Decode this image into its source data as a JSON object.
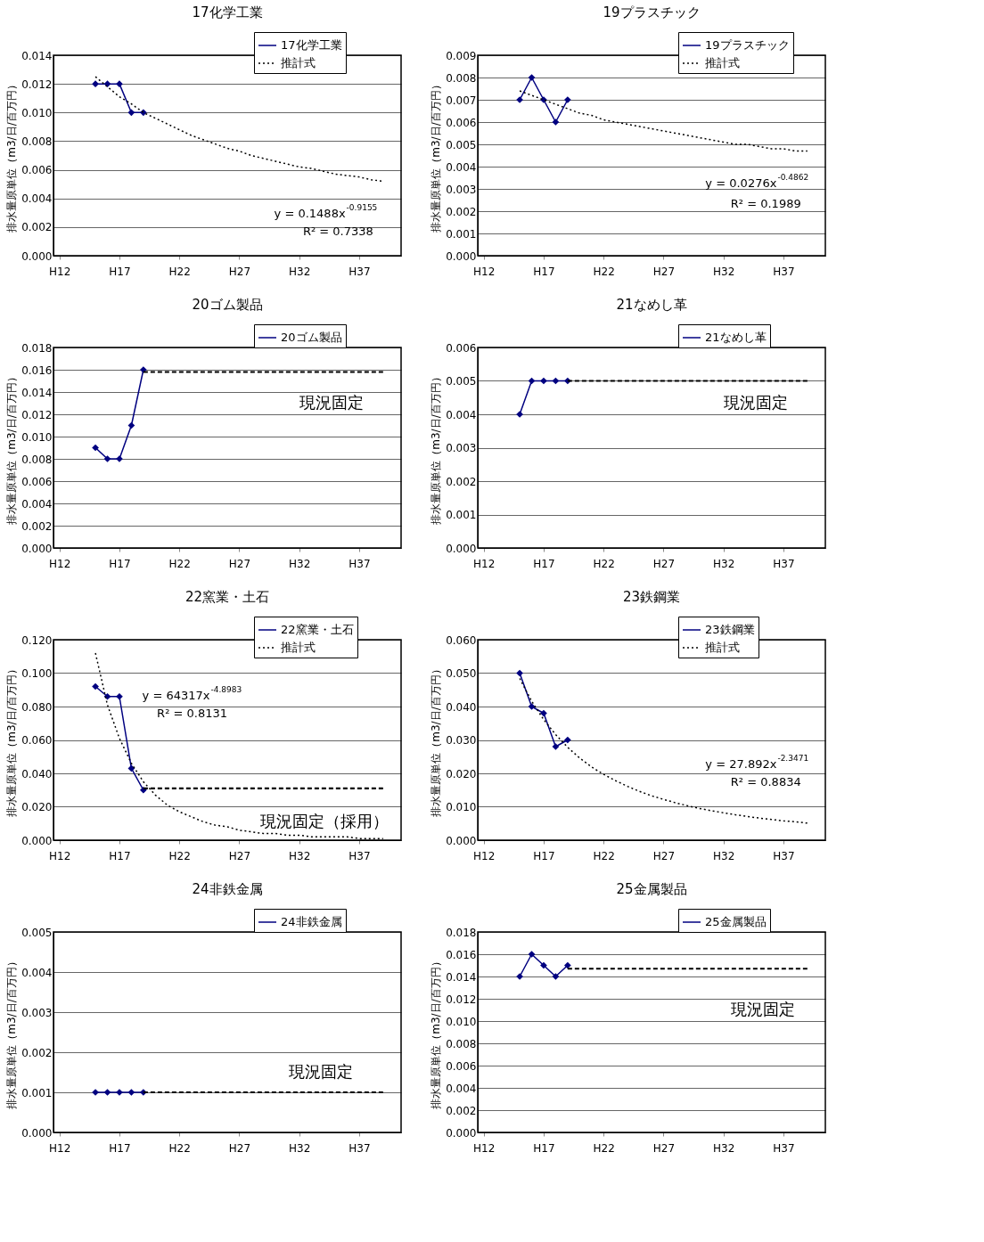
{
  "chart_data": [
    {
      "type": "line",
      "title": "17化学工業",
      "ylabel": "排水量原単位（m3/日/百万円）",
      "categories": [
        "H12",
        null,
        null,
        null,
        null,
        "H17",
        null,
        null,
        null,
        null,
        "H22",
        null,
        null,
        null,
        null,
        "H27",
        null,
        null,
        null,
        null,
        "H32",
        null,
        null,
        null,
        null,
        "H37",
        null,
        null,
        null
      ],
      "ylim": [
        0,
        0.014
      ],
      "yticks": [
        {
          "value": 0,
          "label": "0.000"
        },
        {
          "value": 0.002,
          "label": "0.002"
        },
        {
          "value": 0.004,
          "label": "0.004"
        },
        {
          "value": 0.006,
          "label": "0.006"
        },
        {
          "value": 0.008,
          "label": "0.008"
        },
        {
          "value": 0.01,
          "label": "0.010"
        },
        {
          "value": 0.012,
          "label": "0.012"
        },
        {
          "value": 0.014,
          "label": "0.014"
        }
      ],
      "grid": "y",
      "legend": "top right",
      "series": [
        {
          "name": "17化学工業",
          "color": "#000080",
          "marker": "diamond",
          "line_style": "solid",
          "values": [
            null,
            null,
            null,
            0.012,
            0.012,
            0.012,
            0.01,
            0.01,
            null,
            null,
            null,
            null,
            null,
            null,
            null,
            null,
            null,
            null,
            null,
            null,
            null,
            null,
            null,
            null,
            null,
            null,
            null,
            null,
            null
          ]
        },
        {
          "name": "推計式",
          "color": "#000000",
          "marker": "none",
          "line_style": "dotted",
          "values": [
            null,
            null,
            null,
            0.0125,
            0.0118,
            0.0111,
            0.0106,
            0.01,
            0.0096,
            0.0092,
            0.0088,
            0.0084,
            0.0081,
            0.0078,
            0.0075,
            0.0073,
            0.007,
            0.0068,
            0.0066,
            0.0064,
            0.0062,
            0.0061,
            0.0059,
            0.0057,
            0.0056,
            0.0055,
            0.0053,
            0.0052,
            null
          ]
        }
      ],
      "annotations": [
        "y = 0.1488x$^{-0.9155}$",
        "R² = 0.7338"
      ]
    },
    {
      "type": "line",
      "title": "19プラスチック",
      "ylabel": "排水量原単位（m3/日/百万円）",
      "categories": [
        "H12",
        null,
        null,
        null,
        null,
        "H17",
        null,
        null,
        null,
        null,
        "H22",
        null,
        null,
        null,
        null,
        "H27",
        null,
        null,
        null,
        null,
        "H32",
        null,
        null,
        null,
        null,
        "H37",
        null,
        null,
        null
      ],
      "ylim": [
        0,
        0.009
      ],
      "yticks": [
        {
          "value": 0,
          "label": "0.000"
        },
        {
          "value": 0.001,
          "label": "0.001"
        },
        {
          "value": 0.002,
          "label": "0.002"
        },
        {
          "value": 0.003,
          "label": "0.003"
        },
        {
          "value": 0.004,
          "label": "0.004"
        },
        {
          "value": 0.005,
          "label": "0.005"
        },
        {
          "value": 0.006,
          "label": "0.006"
        },
        {
          "value": 0.007,
          "label": "0.007"
        },
        {
          "value": 0.008,
          "label": "0.008"
        },
        {
          "value": 0.009,
          "label": "0.009"
        }
      ],
      "grid": "y",
      "legend": "top right",
      "series": [
        {
          "name": "19プラスチック",
          "color": "#000080",
          "marker": "diamond",
          "line_style": "solid",
          "values": [
            null,
            null,
            null,
            0.007,
            0.008,
            0.007,
            0.006,
            0.007,
            null,
            null,
            null,
            null,
            null,
            null,
            null,
            null,
            null,
            null,
            null,
            null,
            null,
            null,
            null,
            null,
            null,
            null,
            null,
            null,
            null
          ]
        },
        {
          "name": "推計式",
          "color": "#000000",
          "marker": "none",
          "line_style": "dotted",
          "values": [
            null,
            null,
            null,
            0.0074,
            0.0072,
            0.007,
            0.0068,
            0.0066,
            0.0064,
            0.0063,
            0.0061,
            0.006,
            0.0059,
            0.0058,
            0.0057,
            0.0056,
            0.0055,
            0.0054,
            0.0053,
            0.0052,
            0.0051,
            0.005,
            0.005,
            0.0049,
            0.0048,
            0.0048,
            0.0047,
            0.0047,
            null
          ]
        }
      ],
      "annotations": [
        "y = 0.0276x$^{-0.4862}$",
        "R² = 0.1989"
      ]
    },
    {
      "type": "line",
      "title": "20ゴム製品",
      "ylabel": "排水量原単位（m3/日/百万円）",
      "categories": [
        "H12",
        null,
        null,
        null,
        null,
        "H17",
        null,
        null,
        null,
        null,
        "H22",
        null,
        null,
        null,
        null,
        "H27",
        null,
        null,
        null,
        null,
        "H32",
        null,
        null,
        null,
        null,
        "H37",
        null,
        null,
        null
      ],
      "ylim": [
        0,
        0.018
      ],
      "yticks": [
        {
          "value": 0,
          "label": "0.000"
        },
        {
          "value": 0.002,
          "label": "0.002"
        },
        {
          "value": 0.004,
          "label": "0.004"
        },
        {
          "value": 0.006,
          "label": "0.006"
        },
        {
          "value": 0.008,
          "label": "0.008"
        },
        {
          "value": 0.01,
          "label": "0.010"
        },
        {
          "value": 0.012,
          "label": "0.012"
        },
        {
          "value": 0.014,
          "label": "0.014"
        },
        {
          "value": 0.016,
          "label": "0.016"
        },
        {
          "value": 0.018,
          "label": "0.018"
        }
      ],
      "grid": "y",
      "legend": "top right",
      "series": [
        {
          "name": "20ゴム製品",
          "color": "#000080",
          "marker": "diamond",
          "line_style": "solid",
          "values": [
            null,
            null,
            null,
            0.009,
            0.008,
            0.008,
            0.011,
            0.016,
            null,
            null,
            null,
            null,
            null,
            null,
            null,
            null,
            null,
            null,
            null,
            null,
            null,
            null,
            null,
            null,
            null,
            null,
            null,
            null,
            null
          ]
        },
        {
          "color": "#000000",
          "marker": "none",
          "line_style": "dashed",
          "values": [
            null,
            null,
            null,
            null,
            null,
            null,
            null,
            0.0158,
            0.0158,
            0.0158,
            0.0158,
            0.0158,
            0.0158,
            0.0158,
            0.0158,
            0.0158,
            0.0158,
            0.0158,
            0.0158,
            0.0158,
            0.0158,
            0.0158,
            0.0158,
            0.0158,
            0.0158,
            0.0158,
            0.0158,
            0.0158,
            null
          ]
        }
      ],
      "annotations": [
        "現況固定"
      ]
    },
    {
      "type": "line",
      "title": "21なめし革",
      "ylabel": "排水量原単位（m3/日/百万円）",
      "categories": [
        "H12",
        null,
        null,
        null,
        null,
        "H17",
        null,
        null,
        null,
        null,
        "H22",
        null,
        null,
        null,
        null,
        "H27",
        null,
        null,
        null,
        null,
        "H32",
        null,
        null,
        null,
        null,
        "H37",
        null,
        null,
        null
      ],
      "ylim": [
        0,
        0.006
      ],
      "yticks": [
        {
          "value": 0,
          "label": "0.000"
        },
        {
          "value": 0.001,
          "label": "0.001"
        },
        {
          "value": 0.002,
          "label": "0.002"
        },
        {
          "value": 0.003,
          "label": "0.003"
        },
        {
          "value": 0.004,
          "label": "0.004"
        },
        {
          "value": 0.005,
          "label": "0.005"
        },
        {
          "value": 0.006,
          "label": "0.006"
        }
      ],
      "grid": "y",
      "legend": "top right",
      "series": [
        {
          "name": "21なめし革",
          "color": "#000080",
          "marker": "diamond",
          "line_style": "solid",
          "values": [
            null,
            null,
            null,
            0.004,
            0.005,
            0.005,
            0.005,
            0.005,
            null,
            null,
            null,
            null,
            null,
            null,
            null,
            null,
            null,
            null,
            null,
            null,
            null,
            null,
            null,
            null,
            null,
            null,
            null,
            null,
            null
          ]
        },
        {
          "color": "#000000",
          "marker": "none",
          "line_style": "dashed",
          "values": [
            null,
            null,
            null,
            null,
            null,
            null,
            null,
            0.005,
            0.005,
            0.005,
            0.005,
            0.005,
            0.005,
            0.005,
            0.005,
            0.005,
            0.005,
            0.005,
            0.005,
            0.005,
            0.005,
            0.005,
            0.005,
            0.005,
            0.005,
            0.005,
            0.005,
            0.005,
            null
          ]
        }
      ],
      "annotations": [
        "現況固定"
      ]
    },
    {
      "type": "line",
      "title": "22窯業・土石",
      "ylabel": "排水量原単位（m3/日/百万円）",
      "categories": [
        "H12",
        null,
        null,
        null,
        null,
        "H17",
        null,
        null,
        null,
        null,
        "H22",
        null,
        null,
        null,
        null,
        "H27",
        null,
        null,
        null,
        null,
        "H32",
        null,
        null,
        null,
        null,
        "H37",
        null,
        null,
        null
      ],
      "ylim": [
        0,
        0.12
      ],
      "yticks": [
        {
          "value": 0,
          "label": "0.000"
        },
        {
          "value": 0.02,
          "label": "0.020"
        },
        {
          "value": 0.04,
          "label": "0.040"
        },
        {
          "value": 0.06,
          "label": "0.060"
        },
        {
          "value": 0.08,
          "label": "0.080"
        },
        {
          "value": 0.1,
          "label": "0.100"
        },
        {
          "value": 0.12,
          "label": "0.120"
        }
      ],
      "grid": "y",
      "legend": "top right",
      "series": [
        {
          "name": "22窯業・土石",
          "color": "#000080",
          "marker": "diamond",
          "line_style": "solid",
          "values": [
            null,
            null,
            null,
            0.092,
            0.086,
            0.086,
            0.043,
            0.03,
            null,
            null,
            null,
            null,
            null,
            null,
            null,
            null,
            null,
            null,
            null,
            null,
            null,
            null,
            null,
            null,
            null,
            null,
            null,
            null,
            null
          ]
        },
        {
          "name": "推計式",
          "color": "#000000",
          "marker": "none",
          "line_style": "dotted",
          "values": [
            null,
            null,
            null,
            0.112,
            0.081,
            0.061,
            0.046,
            0.035,
            0.027,
            0.021,
            0.017,
            0.014,
            0.011,
            0.009,
            0.008,
            0.006,
            0.005,
            0.004,
            0.004,
            0.003,
            0.003,
            0.002,
            0.002,
            0.002,
            0.002,
            0.001,
            0.001,
            0.001,
            null
          ]
        },
        {
          "color": "#000000",
          "marker": "none",
          "line_style": "dashed",
          "values": [
            null,
            null,
            null,
            null,
            null,
            null,
            null,
            0.031,
            0.031,
            0.031,
            0.031,
            0.031,
            0.031,
            0.031,
            0.031,
            0.031,
            0.031,
            0.031,
            0.031,
            0.031,
            0.031,
            0.031,
            0.031,
            0.031,
            0.031,
            0.031,
            0.031,
            0.031,
            null
          ]
        }
      ],
      "annotations": [
        "y = 64317x$^{-4.8983}$",
        "R² = 0.8131",
        "現況固定（採用）"
      ]
    },
    {
      "type": "line",
      "title": "23鉄鋼業",
      "ylabel": "排水量原単位（m3/日/百万円）",
      "categories": [
        "H12",
        null,
        null,
        null,
        null,
        "H17",
        null,
        null,
        null,
        null,
        "H22",
        null,
        null,
        null,
        null,
        "H27",
        null,
        null,
        null,
        null,
        "H32",
        null,
        null,
        null,
        null,
        "H37",
        null,
        null,
        null
      ],
      "ylim": [
        0,
        0.06
      ],
      "yticks": [
        {
          "value": 0,
          "label": "0.000"
        },
        {
          "value": 0.01,
          "label": "0.010"
        },
        {
          "value": 0.02,
          "label": "0.020"
        },
        {
          "value": 0.03,
          "label": "0.030"
        },
        {
          "value": 0.04,
          "label": "0.040"
        },
        {
          "value": 0.05,
          "label": "0.050"
        },
        {
          "value": 0.06,
          "label": "0.060"
        }
      ],
      "grid": "y",
      "legend": "top right",
      "series": [
        {
          "name": "23鉄鋼業",
          "color": "#000080",
          "marker": "diamond",
          "line_style": "solid",
          "values": [
            null,
            null,
            null,
            0.05,
            0.04,
            0.038,
            0.028,
            0.03,
            null,
            null,
            null,
            null,
            null,
            null,
            null,
            null,
            null,
            null,
            null,
            null,
            null,
            null,
            null,
            null,
            null,
            null,
            null,
            null,
            null
          ]
        },
        {
          "name": "推計式",
          "color": "#000000",
          "marker": "none",
          "line_style": "dotted",
          "values": [
            null,
            null,
            null,
            0.0484,
            0.0416,
            0.0361,
            0.0316,
            0.0278,
            0.0246,
            0.0219,
            0.0197,
            0.0178,
            0.0161,
            0.0146,
            0.0133,
            0.0122,
            0.0112,
            0.0103,
            0.0095,
            0.0088,
            0.0082,
            0.0076,
            0.0071,
            0.0066,
            0.0062,
            0.0058,
            0.0055,
            0.0051,
            null
          ]
        }
      ],
      "annotations": [
        "y = 27.892x$^{-2.3471}$",
        "R² = 0.8834"
      ]
    },
    {
      "type": "line",
      "title": "24非鉄金属",
      "ylabel": "排水量原単位（m3/日/百万円）",
      "categories": [
        "H12",
        null,
        null,
        null,
        null,
        "H17",
        null,
        null,
        null,
        null,
        "H22",
        null,
        null,
        null,
        null,
        "H27",
        null,
        null,
        null,
        null,
        "H32",
        null,
        null,
        null,
        null,
        "H37",
        null,
        null,
        null
      ],
      "ylim": [
        0,
        0.005
      ],
      "yticks": [
        {
          "value": 0,
          "label": "0.000"
        },
        {
          "value": 0.001,
          "label": "0.001"
        },
        {
          "value": 0.002,
          "label": "0.002"
        },
        {
          "value": 0.003,
          "label": "0.003"
        },
        {
          "value": 0.004,
          "label": "0.004"
        },
        {
          "value": 0.005,
          "label": "0.005"
        }
      ],
      "grid": "y",
      "legend": "top right",
      "series": [
        {
          "name": "24非鉄金属",
          "color": "#000080",
          "marker": "diamond",
          "line_style": "solid",
          "values": [
            null,
            null,
            null,
            0.001,
            0.001,
            0.001,
            0.001,
            0.001,
            null,
            null,
            null,
            null,
            null,
            null,
            null,
            null,
            null,
            null,
            null,
            null,
            null,
            null,
            null,
            null,
            null,
            null,
            null,
            null,
            null
          ]
        },
        {
          "color": "#000000",
          "marker": "none",
          "line_style": "dashed",
          "values": [
            null,
            null,
            null,
            null,
            null,
            null,
            null,
            0.001,
            0.001,
            0.001,
            0.001,
            0.001,
            0.001,
            0.001,
            0.001,
            0.001,
            0.001,
            0.001,
            0.001,
            0.001,
            0.001,
            0.001,
            0.001,
            0.001,
            0.001,
            0.001,
            0.001,
            0.001,
            null
          ]
        }
      ],
      "annotations": [
        "現況固定"
      ]
    },
    {
      "type": "line",
      "title": "25金属製品",
      "ylabel": "排水量原単位（m3/日/百万円）",
      "categories": [
        "H12",
        null,
        null,
        null,
        null,
        "H17",
        null,
        null,
        null,
        null,
        "H22",
        null,
        null,
        null,
        null,
        "H27",
        null,
        null,
        null,
        null,
        "H32",
        null,
        null,
        null,
        null,
        "H37",
        null,
        null,
        null
      ],
      "ylim": [
        0,
        0.018
      ],
      "yticks": [
        {
          "value": 0,
          "label": "0.000"
        },
        {
          "value": 0.002,
          "label": "0.002"
        },
        {
          "value": 0.004,
          "label": "0.004"
        },
        {
          "value": 0.006,
          "label": "0.006"
        },
        {
          "value": 0.008,
          "label": "0.008"
        },
        {
          "value": 0.01,
          "label": "0.010"
        },
        {
          "value": 0.012,
          "label": "0.012"
        },
        {
          "value": 0.014,
          "label": "0.014"
        },
        {
          "value": 0.016,
          "label": "0.016"
        },
        {
          "value": 0.018,
          "label": "0.018"
        }
      ],
      "grid": "y",
      "legend": "top right",
      "series": [
        {
          "name": "25金属製品",
          "color": "#000080",
          "marker": "diamond",
          "line_style": "solid",
          "values": [
            null,
            null,
            null,
            0.014,
            0.016,
            0.015,
            0.014,
            0.015,
            null,
            null,
            null,
            null,
            null,
            null,
            null,
            null,
            null,
            null,
            null,
            null,
            null,
            null,
            null,
            null,
            null,
            null,
            null,
            null,
            null
          ]
        },
        {
          "color": "#000000",
          "marker": "none",
          "line_style": "dashed",
          "values": [
            null,
            null,
            null,
            null,
            null,
            null,
            null,
            0.0147,
            0.0147,
            0.0147,
            0.0147,
            0.0147,
            0.0147,
            0.0147,
            0.0147,
            0.0147,
            0.0147,
            0.0147,
            0.0147,
            0.0147,
            0.0147,
            0.0147,
            0.0147,
            0.0147,
            0.0147,
            0.0147,
            0.0147,
            0.0147,
            null
          ]
        }
      ],
      "annotations": [
        "現況固定"
      ]
    }
  ]
}
